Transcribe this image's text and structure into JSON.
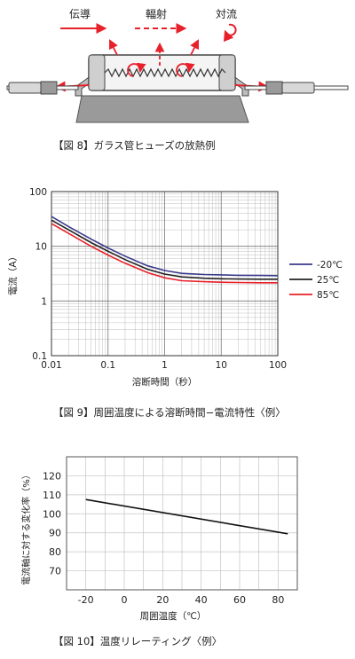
{
  "fig8": {
    "labels": {
      "conduction": "伝導",
      "radiation": "輻射",
      "convection": "対流"
    },
    "caption": "【図 8】ガラス管ヒューズの放熱例",
    "arrow_color": "#e8202a"
  },
  "fig9": {
    "caption": "【図 9】周囲温度による溶断時間−電流特性〈例〉"
  },
  "fig10": {
    "caption": "【図 10】温度リレーティング〈例〉"
  },
  "chart_data": [
    {
      "type": "line",
      "xscale": "log",
      "yscale": "log",
      "xlim": [
        0.01,
        100
      ],
      "ylim": [
        0.1,
        100
      ],
      "xticks": [
        "0.01",
        "0.1",
        "1",
        "10",
        "100"
      ],
      "yticks": [
        "0.1",
        "1",
        "10",
        "100"
      ],
      "xlabel": "溶断時間（秒）",
      "ylabel": "電流（A）",
      "grid": true,
      "legend": "right",
      "series": [
        {
          "name": "-20℃",
          "color": "#3a3a8c",
          "x": [
            0.01,
            0.02,
            0.05,
            0.1,
            0.2,
            0.5,
            1,
            2,
            5,
            10,
            20,
            50,
            100
          ],
          "y": [
            35,
            23,
            13.5,
            9.3,
            6.6,
            4.4,
            3.6,
            3.2,
            3.05,
            3.0,
            2.95,
            2.92,
            2.9
          ]
        },
        {
          "name": "25℃",
          "color": "#222222",
          "x": [
            0.01,
            0.02,
            0.05,
            0.1,
            0.2,
            0.5,
            1,
            2,
            5,
            10,
            20,
            50,
            100
          ],
          "y": [
            30,
            20,
            11.7,
            8.1,
            5.7,
            3.8,
            3.1,
            2.75,
            2.6,
            2.55,
            2.52,
            2.5,
            2.5
          ]
        },
        {
          "name": "85℃",
          "color": "#e8202a",
          "x": [
            0.01,
            0.02,
            0.05,
            0.1,
            0.2,
            0.5,
            1,
            2,
            5,
            10,
            20,
            50,
            100
          ],
          "y": [
            26,
            17.2,
            10,
            6.9,
            4.9,
            3.3,
            2.65,
            2.35,
            2.25,
            2.2,
            2.18,
            2.15,
            2.15
          ]
        }
      ]
    },
    {
      "type": "line",
      "xlim": [
        -30,
        90
      ],
      "ylim": [
        60,
        130
      ],
      "xticks": [
        "-20",
        "0",
        "20",
        "40",
        "60",
        "80"
      ],
      "yticks": [
        "70",
        "80",
        "90",
        "100",
        "110",
        "120"
      ],
      "xlabel": "周囲温度（℃）",
      "ylabel": "電流軸に対する変化率（%）",
      "grid": true,
      "series": [
        {
          "color": "#111111",
          "x": [
            -20,
            85
          ],
          "y": [
            107.5,
            89.5
          ]
        }
      ]
    }
  ]
}
